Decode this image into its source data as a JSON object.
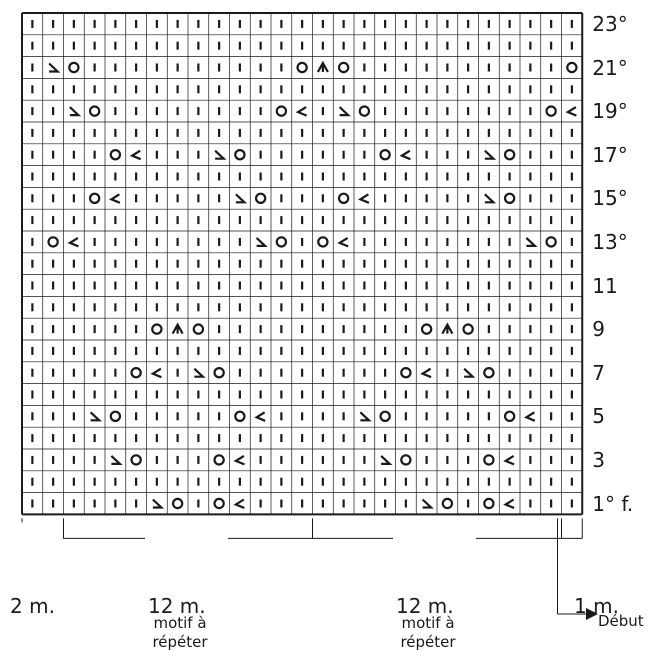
{
  "chart": {
    "rows": [
      {
        "label": "23°",
        "cells": "||||||||||||||||||||||||||||"
      },
      {
        "label": "",
        "cells": "||||||||||||||||||||||||||||"
      },
      {
        "label": "21°",
        "cells": "|\\o||||||||||oAo||||||||||o/|"
      },
      {
        "label": "",
        "cells": "||||||||||||||||||||||||||||"
      },
      {
        "label": "19°",
        "cells": "||\\o||||||||o/|\\o||||||||o/||"
      },
      {
        "label": "",
        "cells": "||||||||||||||||||||||||||||"
      },
      {
        "label": "17°",
        "cells": "||||o/|||\\o||||||o/|||\\o|||||"
      },
      {
        "label": "",
        "cells": "||||||||||||||||||||||||||||"
      },
      {
        "label": "15°",
        "cells": "|||o/|||||\\o|||o/|||||\\o||||"
      },
      {
        "label": "",
        "cells": "||||||||||||||||||||||||||||"
      },
      {
        "label": "13°",
        "cells": "|o/||||||||\\o|o/||||||||\\o|"
      },
      {
        "label": "",
        "cells": "||||||||||||||||||||||||||||"
      },
      {
        "label": "11",
        "cells": "||||||||||||||||||||||||||||"
      },
      {
        "label": "",
        "cells": "||||||||||||||||||||||||||||"
      },
      {
        "label": "9",
        "cells": "||||||oAo||||||||||oAo||||||"
      },
      {
        "label": "",
        "cells": "||||||||||||||||||||||||||||"
      },
      {
        "label": "7",
        "cells": "|||||o/|\\o||||||||o/|\\o|||||"
      },
      {
        "label": "",
        "cells": "||||||||||||||||||||||||||||"
      },
      {
        "label": "5",
        "cells": "|||\\o|||||o/||||\\o|||||o/||||"
      },
      {
        "label": "",
        "cells": "||||||||||||||||||||||||||||"
      },
      {
        "label": "3",
        "cells": "||||\\o|||o/||||||\\o|||o/|||||"
      },
      {
        "label": "",
        "cells": "||||||||||||||||||||||||||||"
      },
      {
        "label": "1° f.",
        "cells": "||||||\\o|o/||||||||\\o|o/|||||||"
      }
    ]
  },
  "bottom": {
    "left_label": "2 m.",
    "repeat1_label": "12 m.",
    "repeat1_caption_1": "motif à",
    "repeat1_caption_2": "répéter",
    "repeat2_label": "12 m.",
    "repeat2_caption_1": "motif à",
    "repeat2_caption_2": "répéter",
    "right_label": "1 m.",
    "start_label": "Début"
  }
}
